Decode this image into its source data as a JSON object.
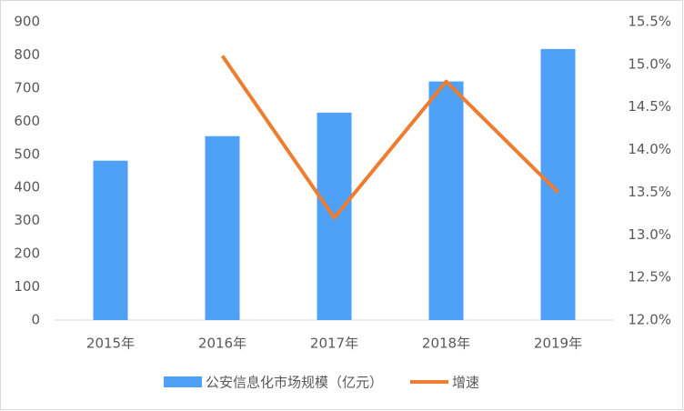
{
  "chart_data": {
    "type": "bar-line",
    "categories": [
      "2015年",
      "2016年",
      "2017年",
      "2018年",
      "2019年"
    ],
    "series": [
      {
        "name": "公安信息化市场规模（亿元）",
        "type": "bar",
        "color": "#4ea1f6",
        "values": [
          481,
          555,
          626,
          720,
          818
        ]
      },
      {
        "name": "增速",
        "type": "line",
        "axis": "y2",
        "color": "#ed7d31",
        "values": [
          null,
          15.1,
          13.2,
          14.8,
          13.5
        ]
      }
    ],
    "ylim": [
      0,
      900
    ],
    "yticks": [
      0,
      100,
      200,
      300,
      400,
      500,
      600,
      700,
      800,
      900
    ],
    "y2lim": [
      12.0,
      15.5
    ],
    "y2ticks": [
      {
        "value": 12.0,
        "label": "12.0%"
      },
      {
        "value": 12.5,
        "label": "12.5%"
      },
      {
        "value": 13.0,
        "label": "13.0%"
      },
      {
        "value": 13.5,
        "label": "13.5%"
      },
      {
        "value": 14.0,
        "label": "14.0%"
      },
      {
        "value": 14.5,
        "label": "14.5%"
      },
      {
        "value": 15.0,
        "label": "15.0%"
      },
      {
        "value": 15.5,
        "label": "15.5%"
      }
    ],
    "grid": false,
    "legend": "bottom"
  }
}
